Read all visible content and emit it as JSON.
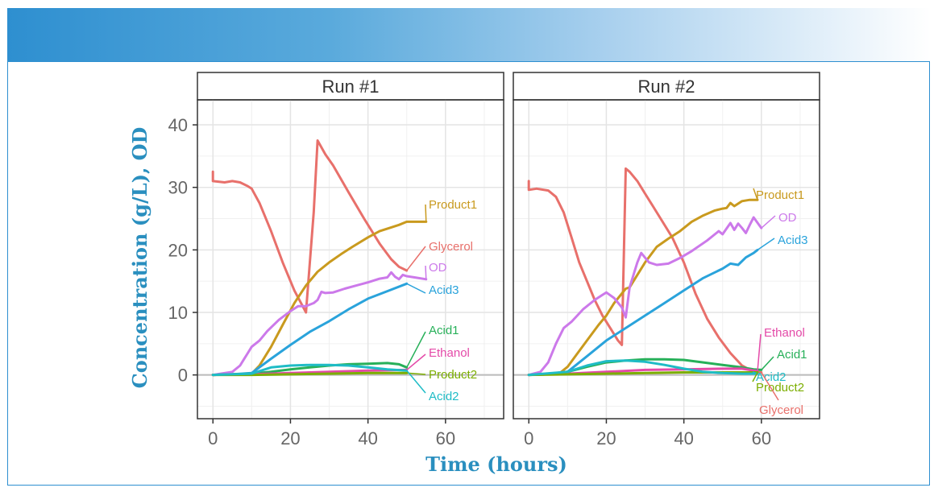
{
  "chart_data": {
    "type": "line",
    "title": "",
    "xlabel": "Time (hours)",
    "ylabel": "Concentration (g/L), OD",
    "xlim": [
      -4,
      75
    ],
    "ylim": [
      -7,
      44
    ],
    "xticks": [
      "0",
      "20",
      "40",
      "60"
    ],
    "yticks": [
      "0",
      "10",
      "20",
      "30",
      "40"
    ],
    "grid": true,
    "legend": "direct labels at line ends",
    "colors": {
      "Product1": "#c99a1e",
      "Glycerol": "#e8706b",
      "OD": "#cc79ea",
      "Acid3": "#2aa3db",
      "Acid1": "#27b059",
      "Ethanol": "#e44aa8",
      "Product2": "#7cae00",
      "Acid2": "#1fbcc6"
    },
    "panels": [
      {
        "title": "Run #1",
        "series": [
          {
            "name": "Glycerol",
            "x": [
              0,
              0,
              3,
              5,
              7,
              9,
              10,
              12,
              15,
              18,
              21,
              24,
              26,
              27,
              29,
              31,
              35,
              39,
              43,
              46,
              48,
              50
            ],
            "y": [
              32.5,
              31,
              30.8,
              31,
              30.8,
              30.2,
              29.8,
              27.5,
              23,
              18,
              13.5,
              10,
              26,
              37.5,
              35.3,
              33.5,
              29.2,
              25,
              21,
              18.5,
              17.3,
              16.7
            ]
          },
          {
            "name": "Product1",
            "x": [
              0,
              5,
              10,
              12,
              15,
              18,
              21,
              24,
              27,
              30,
              33,
              36,
              40,
              43,
              46,
              48,
              50,
              55
            ],
            "y": [
              0,
              0.1,
              0.2,
              1.5,
              4.5,
              8,
              11.5,
              14.3,
              16.5,
              18,
              19.3,
              20.5,
              22,
              23,
              23.6,
              24,
              24.5,
              24.5
            ]
          },
          {
            "name": "OD",
            "x": [
              0,
              3,
              5,
              7,
              8,
              9,
              10,
              12,
              14,
              17,
              20,
              22,
              24,
              26,
              27,
              28,
              29,
              31,
              34,
              37,
              40,
              43,
              45,
              46,
              47,
              48,
              49,
              50,
              52,
              55
            ],
            "y": [
              0,
              0.3,
              0.5,
              1.5,
              2.5,
              3.5,
              4.5,
              5.5,
              7,
              8.8,
              10.2,
              11,
              11,
              11.5,
              12,
              13.3,
              13.1,
              13.2,
              13.8,
              14.3,
              14.8,
              15.4,
              15.6,
              16.4,
              15.7,
              15.3,
              16,
              15.8,
              15.6,
              15.3
            ]
          },
          {
            "name": "Acid3",
            "x": [
              0,
              5,
              10,
              15,
              20,
              25,
              30,
              35,
              40,
              45,
              50
            ],
            "y": [
              0,
              0.1,
              0.3,
              2.6,
              4.8,
              6.9,
              8.6,
              10.5,
              12.2,
              13.4,
              14.6
            ]
          },
          {
            "name": "Acid1",
            "x": [
              0,
              5,
              10,
              15,
              20,
              25,
              30,
              35,
              40,
              45,
              48,
              50
            ],
            "y": [
              0,
              0.1,
              0.2,
              0.5,
              0.9,
              1.2,
              1.5,
              1.7,
              1.8,
              1.9,
              1.7,
              1.2
            ]
          },
          {
            "name": "Ethanol",
            "x": [
              0,
              10,
              20,
              30,
              40,
              50
            ],
            "y": [
              0,
              0.1,
              0.3,
              0.5,
              0.7,
              0.8
            ]
          },
          {
            "name": "Product2",
            "x": [
              0,
              10,
              20,
              30,
              40,
              50
            ],
            "y": [
              0,
              0,
              0.1,
              0.2,
              0.3,
              0.3
            ]
          },
          {
            "name": "Acid2",
            "x": [
              0,
              10,
              15,
              20,
              25,
              30,
              35,
              40,
              45,
              50
            ],
            "y": [
              0,
              0.2,
              1.2,
              1.5,
              1.6,
              1.6,
              1.5,
              1.2,
              0.9,
              0.7
            ]
          }
        ],
        "labels": [
          {
            "text": "Product1",
            "series": "Product1"
          },
          {
            "text": "Glycerol",
            "series": "Glycerol"
          },
          {
            "text": "OD",
            "series": "OD"
          },
          {
            "text": "Acid3",
            "series": "Acid3"
          },
          {
            "text": "Acid1",
            "series": "Acid1"
          },
          {
            "text": "Ethanol",
            "series": "Ethanol"
          },
          {
            "text": "Product2",
            "series": "Product2"
          },
          {
            "text": "Acid2",
            "series": "Acid2"
          }
        ]
      },
      {
        "title": "Run #2",
        "series": [
          {
            "name": "Glycerol",
            "x": [
              0,
              0,
              2,
              5,
              7,
              9,
              11,
              13,
              15,
              17,
              19,
              21,
              23,
              24,
              25,
              26,
              28,
              30,
              32,
              34,
              37,
              40,
              43,
              46,
              49,
              52,
              55,
              58,
              60
            ],
            "y": [
              31,
              29.6,
              29.8,
              29.5,
              28.5,
              26,
              22,
              18,
              15,
              12,
              9.5,
              7.5,
              5.5,
              4.8,
              33,
              32.5,
              31,
              29,
              27,
              25,
              22,
              18,
              13,
              9,
              6,
              3.5,
              1.5,
              0.5,
              0.4
            ]
          },
          {
            "name": "Product1",
            "x": [
              0,
              5,
              8,
              10,
              12,
              15,
              18,
              20,
              22,
              25,
              26,
              28,
              30,
              33,
              36,
              39,
              42,
              45,
              48,
              50,
              51,
              52,
              53,
              55,
              57,
              59
            ],
            "y": [
              0,
              0.1,
              0.3,
              1.3,
              3,
              5.5,
              8,
              9.5,
              11.5,
              13.8,
              14,
              16,
              18,
              20.5,
              21.8,
              23,
              24.5,
              25.5,
              26.3,
              26.6,
              26.7,
              27.5,
              27,
              27.8,
              28,
              28
            ]
          },
          {
            "name": "OD",
            "x": [
              0,
              3,
              5,
              7,
              9,
              11,
              14,
              17,
              19,
              20,
              22,
              24,
              25,
              26,
              28,
              29,
              31,
              33,
              36,
              39,
              42,
              46,
              49,
              50,
              52,
              53,
              54,
              55,
              56,
              57,
              58,
              60
            ],
            "y": [
              0,
              0.5,
              2,
              5,
              7.5,
              8.5,
              10.5,
              12,
              12.8,
              13.2,
              12.3,
              10.8,
              9.2,
              14,
              18,
              19.5,
              18,
              17.6,
              17.8,
              18.7,
              19.8,
              21.5,
              23,
              22.5,
              24.3,
              23.2,
              24.2,
              23.5,
              22.7,
              24,
              25.2,
              23.5
            ]
          },
          {
            "name": "Acid3",
            "x": [
              0,
              5,
              10,
              15,
              20,
              25,
              30,
              35,
              40,
              45,
              50,
              52,
              54,
              56,
              58,
              59
            ],
            "y": [
              0,
              0.2,
              0.5,
              3,
              5.5,
              7.5,
              9.5,
              11.5,
              13.5,
              15.5,
              17,
              17.8,
              17.6,
              18.8,
              19.5,
              20
            ]
          },
          {
            "name": "Acid1",
            "x": [
              0,
              5,
              10,
              15,
              20,
              25,
              30,
              35,
              40,
              45,
              50,
              55,
              58,
              60
            ],
            "y": [
              0,
              0.1,
              0.5,
              1.3,
              2,
              2.3,
              2.5,
              2.5,
              2.4,
              2,
              1.6,
              1.2,
              0.9,
              0.8
            ]
          },
          {
            "name": "Ethanol",
            "x": [
              0,
              10,
              20,
              30,
              40,
              50,
              55,
              59
            ],
            "y": [
              0,
              0.2,
              0.5,
              0.8,
              0.9,
              1,
              1,
              0.6
            ]
          },
          {
            "name": "Product2",
            "x": [
              0,
              10,
              20,
              30,
              40,
              50,
              59
            ],
            "y": [
              0,
              0.1,
              0.2,
              0.3,
              0.4,
              0.4,
              0.4
            ]
          },
          {
            "name": "Acid2",
            "x": [
              0,
              10,
              15,
              20,
              25,
              30,
              35,
              40,
              45,
              50,
              55,
              59
            ],
            "y": [
              0,
              0.5,
              1.5,
              2.2,
              2.3,
              2.1,
              1.6,
              1,
              0.5,
              0.3,
              0.2,
              0.2
            ]
          }
        ],
        "labels": [
          {
            "text": "Product1",
            "series": "Product1"
          },
          {
            "text": "OD",
            "series": "OD"
          },
          {
            "text": "Acid3",
            "series": "Acid3"
          },
          {
            "text": "Ethanol",
            "series": "Ethanol"
          },
          {
            "text": "Acid1",
            "series": "Acid1"
          },
          {
            "text": "Acid2",
            "series": "Acid2"
          },
          {
            "text": "Product2",
            "series": "Product2"
          },
          {
            "text": "Glycerol",
            "series": "Glycerol"
          }
        ]
      }
    ]
  }
}
